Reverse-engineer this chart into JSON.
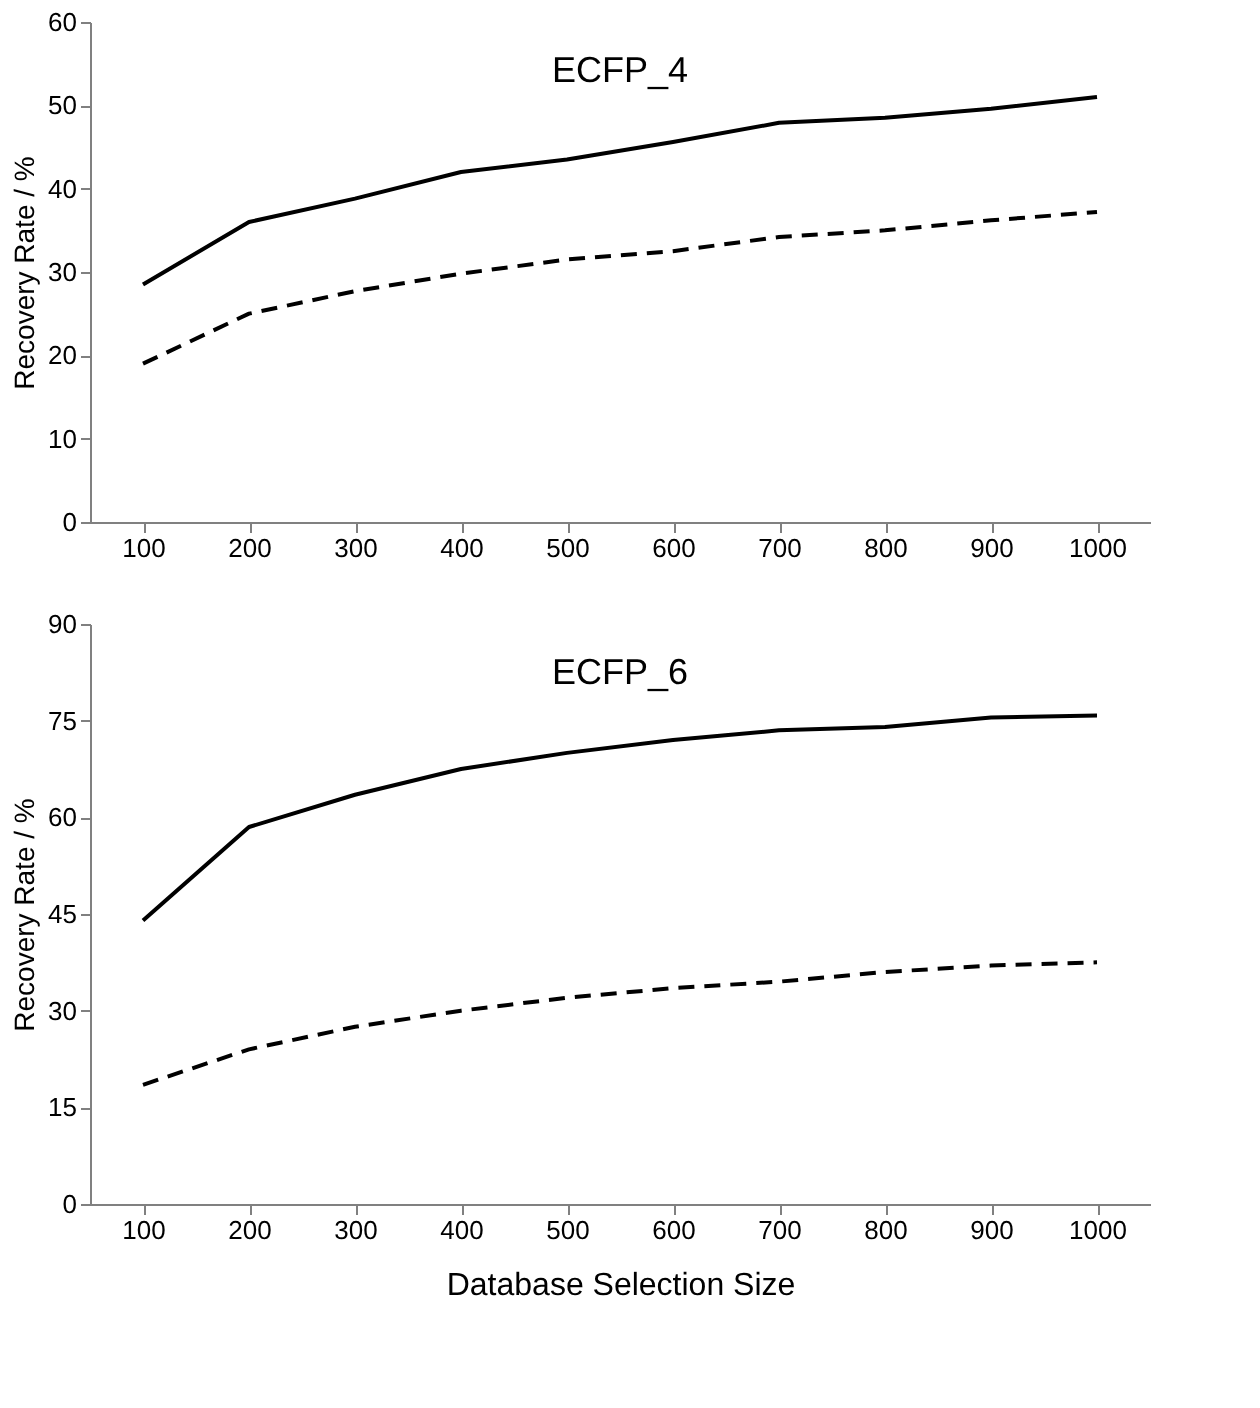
{
  "chart_data": [
    {
      "type": "line",
      "title": "ECFP_4",
      "ylabel": "Recovery Rate / %",
      "categories": [
        "100",
        "200",
        "300",
        "400",
        "500",
        "600",
        "700",
        "800",
        "900",
        "1000"
      ],
      "ylim": [
        0,
        60
      ],
      "yticks": [
        0,
        10,
        20,
        30,
        40,
        50,
        60
      ],
      "grid": false,
      "marker": "none",
      "series": [
        {
          "color": "#000000",
          "line_style": "solid",
          "values": [
            28.5,
            36,
            38.8,
            42,
            43.5,
            45.6,
            47.9,
            48.5,
            49.6,
            51
          ]
        },
        {
          "color": "#000000",
          "line_style": "dashed",
          "values": [
            19,
            25,
            27.7,
            29.8,
            31.5,
            32.5,
            34.2,
            35,
            36.2,
            37.2
          ]
        }
      ]
    },
    {
      "type": "line",
      "title": "ECFP_6",
      "xlabel": "Database Selection Size",
      "ylabel": "Recovery Rate / %",
      "categories": [
        "100",
        "200",
        "300",
        "400",
        "500",
        "600",
        "700",
        "800",
        "900",
        "1000"
      ],
      "ylim": [
        0,
        90
      ],
      "yticks": [
        0,
        15,
        30,
        45,
        60,
        75,
        90
      ],
      "grid": false,
      "marker": "none",
      "series": [
        {
          "color": "#000000",
          "line_style": "solid",
          "values": [
            44,
            58.5,
            63.5,
            67.5,
            70,
            72,
            73.5,
            74,
            75.5,
            75.8
          ]
        },
        {
          "color": "#000000",
          "line_style": "dashed",
          "values": [
            18.5,
            24,
            27.5,
            30,
            32,
            33.5,
            34.5,
            36,
            37,
            37.5
          ]
        }
      ]
    }
  ]
}
